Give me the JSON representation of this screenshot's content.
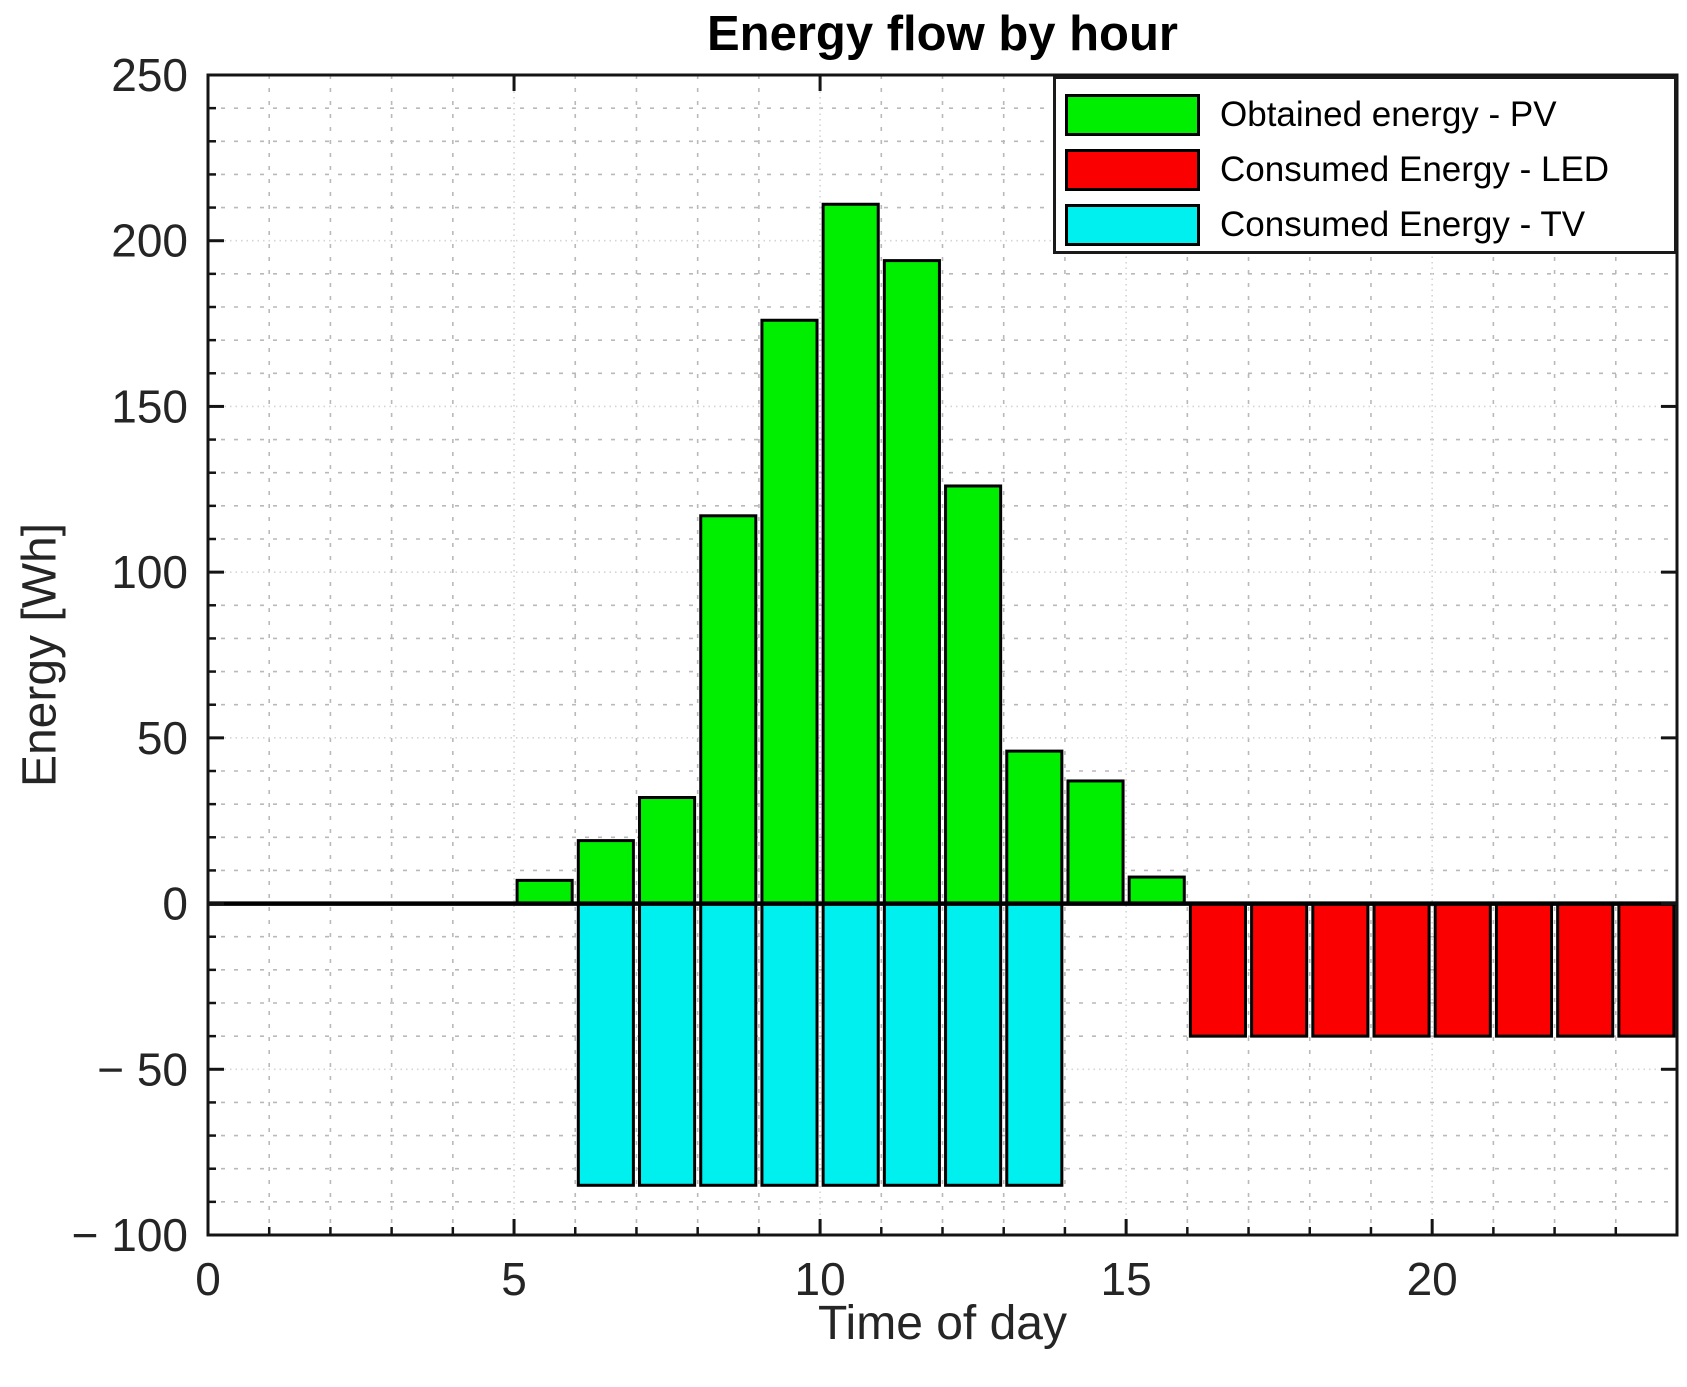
{
  "title": "Energy flow by hour",
  "xlabel": "Time of day",
  "ylabel": "Energy [Wh]",
  "legend": {
    "position": "northeast",
    "items": [
      {
        "label": "Obtained energy - PV",
        "color": "#00ef00"
      },
      {
        "label": "Consumed Energy - LED",
        "color": "#fa0000"
      },
      {
        "label": "Consumed Energy - TV",
        "color": "#00efef"
      }
    ]
  },
  "axes": {
    "xlim": [
      0,
      24
    ],
    "ylim": [
      -100,
      250
    ],
    "x_ticks": [
      {
        "value": 0,
        "label": "0"
      },
      {
        "value": 5,
        "label": "5"
      },
      {
        "value": 10,
        "label": "10"
      },
      {
        "value": 15,
        "label": "15"
      },
      {
        "value": 20,
        "label": "20"
      }
    ],
    "y_ticks": [
      {
        "value": 250,
        "label": "250"
      },
      {
        "value": 200,
        "label": "200"
      },
      {
        "value": 150,
        "label": "150"
      },
      {
        "value": 100,
        "label": "100"
      },
      {
        "value": 50,
        "label": "50"
      },
      {
        "value": 0,
        "label": "0"
      },
      {
        "value": -50,
        "label": "− 50"
      },
      {
        "value": -100,
        "label": "− 100"
      }
    ],
    "x_minor_step": 1,
    "y_minor_step": 10,
    "grid": true,
    "minor_grid": true
  },
  "chart_data": {
    "type": "bar",
    "title": "Energy flow by hour",
    "xlabel": "Time of day",
    "ylabel": "Energy [Wh]",
    "xlim": [
      0,
      24
    ],
    "ylim": [
      -100,
      250
    ],
    "bar_width": 0.9,
    "baseline": 0,
    "series": [
      {
        "name": "Obtained energy - PV",
        "color": "#00ef00",
        "x": [
          5.5,
          6.5,
          7.5,
          8.5,
          9.5,
          10.5,
          11.5,
          12.5,
          13.5,
          14.5,
          15.5
        ],
        "values": [
          7,
          19,
          32,
          117,
          176,
          211,
          194,
          126,
          46,
          37,
          8
        ]
      },
      {
        "name": "Consumed Energy - LED",
        "color": "#fa0000",
        "x": [
          16.5,
          17.5,
          18.5,
          19.5,
          20.5,
          21.5,
          22.5,
          23.5
        ],
        "values": [
          -40,
          -40,
          -40,
          -40,
          -40,
          -40,
          -40,
          -40
        ]
      },
      {
        "name": "Consumed Energy - TV",
        "color": "#00efef",
        "x": [
          6.5,
          7.5,
          8.5,
          9.5,
          10.5,
          11.5,
          12.5,
          13.5
        ],
        "values": [
          -85,
          -85,
          -85,
          -85,
          -85,
          -85,
          -85,
          -85
        ]
      }
    ]
  }
}
